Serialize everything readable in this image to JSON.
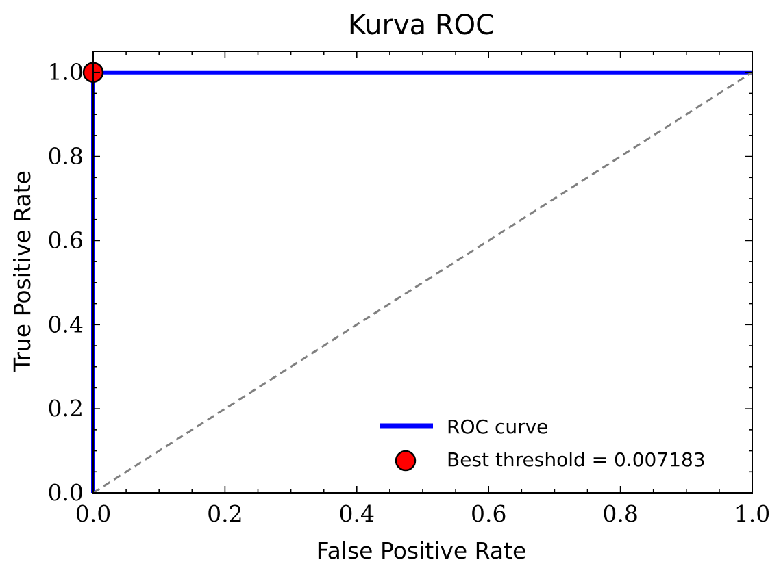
{
  "chart_data": {
    "type": "line",
    "title": "Kurva ROC",
    "xlabel": "False Positive Rate",
    "ylabel": "True Positive Rate",
    "xlim": [
      0.0,
      1.0
    ],
    "ylim": [
      0.0,
      1.05
    ],
    "xticks": [
      0.0,
      0.2,
      0.4,
      0.6,
      0.8,
      1.0
    ],
    "yticks": [
      0.0,
      0.2,
      0.4,
      0.6,
      0.8,
      1.0
    ],
    "xtick_labels": [
      "0.0",
      "0.2",
      "0.4",
      "0.6",
      "0.8",
      "1.0"
    ],
    "ytick_labels": [
      "0.0",
      "0.2",
      "0.4",
      "0.6",
      "0.8",
      "1.0"
    ],
    "grid": false,
    "legend_position": "bottom-right",
    "series": [
      {
        "name": "ROC curve",
        "kind": "line",
        "color": "#0000ff",
        "x": [
          0.0,
          0.0,
          1.0
        ],
        "y": [
          0.0,
          1.0,
          1.0
        ]
      },
      {
        "kind": "reference-line",
        "style": "dashed",
        "color": "#808080",
        "x": [
          0.0,
          1.0
        ],
        "y": [
          0.0,
          1.0
        ]
      },
      {
        "name": "Best threshold = 0.007183",
        "kind": "marker",
        "color": "#ff0000",
        "x": [
          0.0
        ],
        "y": [
          1.0
        ]
      }
    ]
  }
}
